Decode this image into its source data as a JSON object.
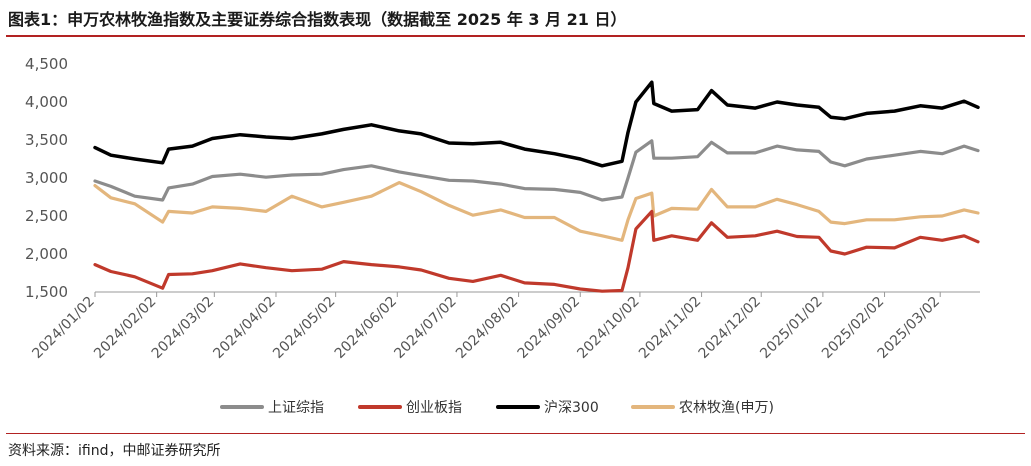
{
  "title": "图表1：申万农林牧渔指数及主要证券综合指数表现（数据截至 2025 年 3 月 21 日）",
  "source": "资料来源：ifind，中邮证券研究所",
  "chart_data": {
    "type": "line",
    "title": "图表1：申万农林牧渔指数及主要证券综合指数表现（数据截至 2025 年 3 月 21 日）",
    "xlabel": "",
    "ylabel": "",
    "ylim": [
      1500,
      4500
    ],
    "y_ticks": [
      "1,500",
      "2,000",
      "2,500",
      "3,000",
      "3,500",
      "4,000",
      "4,500"
    ],
    "x_ticks": [
      "2024/01/02",
      "2024/02/02",
      "2024/03/02",
      "2024/04/02",
      "2024/05/02",
      "2024/06/02",
      "2024/07/02",
      "2024/08/02",
      "2024/09/02",
      "2024/10/02",
      "2024/11/02",
      "2024/12/02",
      "2025/01/02",
      "2025/02/02",
      "2025/03/02"
    ],
    "x_range": [
      "2024/01/02",
      "2025/03/21"
    ],
    "legend_position": "bottom",
    "grid": false,
    "series": [
      {
        "name": "上证综指",
        "color": "#8c8c8c",
        "points": [
          [
            "2024/01/02",
            2960
          ],
          [
            "2024/01/10",
            2890
          ],
          [
            "2024/01/22",
            2760
          ],
          [
            "2024/02/05",
            2710
          ],
          [
            "2024/02/08",
            2870
          ],
          [
            "2024/02/20",
            2920
          ],
          [
            "2024/03/01",
            3020
          ],
          [
            "2024/03/15",
            3050
          ],
          [
            "2024/03/28",
            3010
          ],
          [
            "2024/04/10",
            3040
          ],
          [
            "2024/04/25",
            3050
          ],
          [
            "2024/05/06",
            3110
          ],
          [
            "2024/05/20",
            3160
          ],
          [
            "2024/06/03",
            3080
          ],
          [
            "2024/06/14",
            3030
          ],
          [
            "2024/06/28",
            2970
          ],
          [
            "2024/07/10",
            2960
          ],
          [
            "2024/07/24",
            2920
          ],
          [
            "2024/08/05",
            2860
          ],
          [
            "2024/08/20",
            2850
          ],
          [
            "2024/09/02",
            2810
          ],
          [
            "2024/09/13",
            2710
          ],
          [
            "2024/09/23",
            2750
          ],
          [
            "2024/09/26",
            3000
          ],
          [
            "2024/09/30",
            3340
          ],
          [
            "2024/10/08",
            3490
          ],
          [
            "2024/10/09",
            3260
          ],
          [
            "2024/10/18",
            3260
          ],
          [
            "2024/10/31",
            3280
          ],
          [
            "2024/11/07",
            3470
          ],
          [
            "2024/11/15",
            3330
          ],
          [
            "2024/11/29",
            3330
          ],
          [
            "2024/12/10",
            3420
          ],
          [
            "2024/12/20",
            3370
          ],
          [
            "2024/12/31",
            3350
          ],
          [
            "2025/01/06",
            3210
          ],
          [
            "2025/01/13",
            3160
          ],
          [
            "2025/01/24",
            3250
          ],
          [
            "2025/02/07",
            3300
          ],
          [
            "2025/02/20",
            3350
          ],
          [
            "2025/03/03",
            3320
          ],
          [
            "2025/03/14",
            3420
          ],
          [
            "2025/03/21",
            3360
          ]
        ]
      },
      {
        "name": "创业板指",
        "color": "#c0392b",
        "points": [
          [
            "2024/01/02",
            1860
          ],
          [
            "2024/01/10",
            1770
          ],
          [
            "2024/01/22",
            1700
          ],
          [
            "2024/02/05",
            1550
          ],
          [
            "2024/02/08",
            1730
          ],
          [
            "2024/02/20",
            1740
          ],
          [
            "2024/03/01",
            1780
          ],
          [
            "2024/03/15",
            1870
          ],
          [
            "2024/03/28",
            1820
          ],
          [
            "2024/04/10",
            1780
          ],
          [
            "2024/04/25",
            1800
          ],
          [
            "2024/05/06",
            1900
          ],
          [
            "2024/05/20",
            1860
          ],
          [
            "2024/06/03",
            1830
          ],
          [
            "2024/06/14",
            1790
          ],
          [
            "2024/06/28",
            1680
          ],
          [
            "2024/07/10",
            1640
          ],
          [
            "2024/07/24",
            1720
          ],
          [
            "2024/08/05",
            1620
          ],
          [
            "2024/08/20",
            1600
          ],
          [
            "2024/09/02",
            1540
          ],
          [
            "2024/09/13",
            1510
          ],
          [
            "2024/09/23",
            1520
          ],
          [
            "2024/09/26",
            1820
          ],
          [
            "2024/09/30",
            2330
          ],
          [
            "2024/10/08",
            2560
          ],
          [
            "2024/10/09",
            2180
          ],
          [
            "2024/10/18",
            2240
          ],
          [
            "2024/10/31",
            2180
          ],
          [
            "2024/11/07",
            2410
          ],
          [
            "2024/11/15",
            2220
          ],
          [
            "2024/11/29",
            2240
          ],
          [
            "2024/12/10",
            2300
          ],
          [
            "2024/12/20",
            2230
          ],
          [
            "2024/12/31",
            2220
          ],
          [
            "2025/01/06",
            2040
          ],
          [
            "2025/01/13",
            2000
          ],
          [
            "2025/01/24",
            2090
          ],
          [
            "2025/02/07",
            2080
          ],
          [
            "2025/02/20",
            2220
          ],
          [
            "2025/03/03",
            2180
          ],
          [
            "2025/03/14",
            2240
          ],
          [
            "2025/03/21",
            2160
          ]
        ]
      },
      {
        "name": "沪深300",
        "color": "#000000",
        "points": [
          [
            "2024/01/02",
            3400
          ],
          [
            "2024/01/10",
            3300
          ],
          [
            "2024/01/22",
            3250
          ],
          [
            "2024/02/05",
            3200
          ],
          [
            "2024/02/08",
            3380
          ],
          [
            "2024/02/20",
            3420
          ],
          [
            "2024/03/01",
            3520
          ],
          [
            "2024/03/15",
            3570
          ],
          [
            "2024/03/28",
            3540
          ],
          [
            "2024/04/10",
            3520
          ],
          [
            "2024/04/25",
            3580
          ],
          [
            "2024/05/06",
            3640
          ],
          [
            "2024/05/20",
            3700
          ],
          [
            "2024/06/03",
            3620
          ],
          [
            "2024/06/14",
            3580
          ],
          [
            "2024/06/28",
            3460
          ],
          [
            "2024/07/10",
            3450
          ],
          [
            "2024/07/24",
            3470
          ],
          [
            "2024/08/05",
            3380
          ],
          [
            "2024/08/20",
            3320
          ],
          [
            "2024/09/02",
            3250
          ],
          [
            "2024/09/13",
            3160
          ],
          [
            "2024/09/23",
            3220
          ],
          [
            "2024/09/26",
            3600
          ],
          [
            "2024/09/30",
            4000
          ],
          [
            "2024/10/08",
            4260
          ],
          [
            "2024/10/09",
            3980
          ],
          [
            "2024/10/18",
            3880
          ],
          [
            "2024/10/31",
            3900
          ],
          [
            "2024/11/07",
            4150
          ],
          [
            "2024/11/15",
            3960
          ],
          [
            "2024/11/29",
            3920
          ],
          [
            "2024/12/10",
            4000
          ],
          [
            "2024/12/20",
            3960
          ],
          [
            "2024/12/31",
            3930
          ],
          [
            "2025/01/06",
            3800
          ],
          [
            "2025/01/13",
            3780
          ],
          [
            "2025/01/24",
            3850
          ],
          [
            "2025/02/07",
            3880
          ],
          [
            "2025/02/20",
            3950
          ],
          [
            "2025/03/03",
            3920
          ],
          [
            "2025/03/14",
            4010
          ],
          [
            "2025/03/21",
            3930
          ]
        ]
      },
      {
        "name": "农林牧渔(申万)",
        "color": "#e3b67d",
        "points": [
          [
            "2024/01/02",
            2900
          ],
          [
            "2024/01/10",
            2740
          ],
          [
            "2024/01/22",
            2660
          ],
          [
            "2024/02/05",
            2420
          ],
          [
            "2024/02/08",
            2560
          ],
          [
            "2024/02/20",
            2540
          ],
          [
            "2024/03/01",
            2620
          ],
          [
            "2024/03/15",
            2600
          ],
          [
            "2024/03/28",
            2560
          ],
          [
            "2024/04/10",
            2760
          ],
          [
            "2024/04/25",
            2620
          ],
          [
            "2024/05/06",
            2680
          ],
          [
            "2024/05/20",
            2760
          ],
          [
            "2024/06/03",
            2940
          ],
          [
            "2024/06/14",
            2820
          ],
          [
            "2024/06/28",
            2640
          ],
          [
            "2024/07/10",
            2510
          ],
          [
            "2024/07/24",
            2580
          ],
          [
            "2024/08/05",
            2480
          ],
          [
            "2024/08/20",
            2480
          ],
          [
            "2024/09/02",
            2300
          ],
          [
            "2024/09/13",
            2240
          ],
          [
            "2024/09/23",
            2180
          ],
          [
            "2024/09/26",
            2450
          ],
          [
            "2024/09/30",
            2730
          ],
          [
            "2024/10/08",
            2800
          ],
          [
            "2024/10/09",
            2500
          ],
          [
            "2024/10/18",
            2600
          ],
          [
            "2024/10/31",
            2590
          ],
          [
            "2024/11/07",
            2850
          ],
          [
            "2024/11/15",
            2620
          ],
          [
            "2024/11/29",
            2620
          ],
          [
            "2024/12/10",
            2720
          ],
          [
            "2024/12/20",
            2650
          ],
          [
            "2024/12/31",
            2560
          ],
          [
            "2025/01/06",
            2420
          ],
          [
            "2025/01/13",
            2400
          ],
          [
            "2025/01/24",
            2450
          ],
          [
            "2025/02/07",
            2450
          ],
          [
            "2025/02/20",
            2490
          ],
          [
            "2025/03/03",
            2500
          ],
          [
            "2025/03/14",
            2580
          ],
          [
            "2025/03/21",
            2540
          ]
        ]
      }
    ]
  }
}
